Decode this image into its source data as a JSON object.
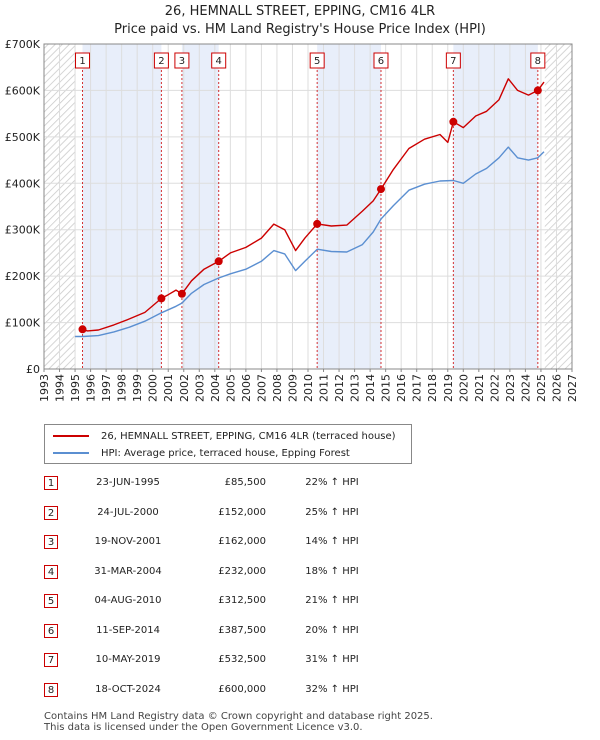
{
  "chart_data": {
    "type": "line",
    "title": "26, HEMNALL STREET, EPPING, CM16 4LR",
    "subtitle": "Price paid vs. HM Land Registry's House Price Index (HPI)",
    "xlim": [
      1993,
      2027
    ],
    "ylim": [
      0,
      700000
    ],
    "xticks": [
      "1993",
      "1994",
      "1995",
      "1996",
      "1997",
      "1998",
      "1999",
      "2000",
      "2001",
      "2002",
      "2003",
      "2004",
      "2005",
      "2006",
      "2007",
      "2008",
      "2009",
      "2010",
      "2011",
      "2012",
      "2013",
      "2014",
      "2015",
      "2016",
      "2017",
      "2018",
      "2019",
      "2020",
      "2021",
      "2022",
      "2023",
      "2024",
      "2025",
      "2026",
      "2027"
    ],
    "yticks": [
      {
        "value": 0,
        "label": "£0"
      },
      {
        "value": 100000,
        "label": "£100K"
      },
      {
        "value": 200000,
        "label": "£200K"
      },
      {
        "value": 300000,
        "label": "£300K"
      },
      {
        "value": 400000,
        "label": "£400K"
      },
      {
        "value": 500000,
        "label": "£500K"
      },
      {
        "value": 600000,
        "label": "£600K"
      },
      {
        "value": 700000,
        "label": "£700K"
      }
    ],
    "data_start": 1995.0,
    "data_end": 2025.25,
    "shaded_periods": [
      [
        1995.48,
        2000.56
      ],
      [
        2001.88,
        2004.25
      ],
      [
        2010.59,
        2014.7
      ],
      [
        2019.36,
        2024.8
      ]
    ],
    "series": [
      {
        "name": "26, HEMNALL STREET, EPPING, CM16 4LR (terraced house)",
        "color": "#cc0000",
        "points": [
          [
            1995.48,
            85500
          ],
          [
            1995.8,
            82000
          ],
          [
            1996.5,
            84000
          ],
          [
            1997.5,
            95000
          ],
          [
            1998.5,
            108000
          ],
          [
            1999.5,
            122000
          ],
          [
            2000.56,
            152000
          ],
          [
            2001.0,
            160000
          ],
          [
            2001.5,
            170000
          ],
          [
            2001.88,
            162000
          ],
          [
            2002.5,
            190000
          ],
          [
            2003.3,
            215000
          ],
          [
            2004.25,
            232000
          ],
          [
            2005.0,
            250000
          ],
          [
            2006.0,
            262000
          ],
          [
            2007.0,
            282000
          ],
          [
            2007.8,
            312000
          ],
          [
            2008.5,
            300000
          ],
          [
            2009.2,
            255000
          ],
          [
            2009.8,
            282000
          ],
          [
            2010.59,
            312500
          ],
          [
            2011.5,
            308000
          ],
          [
            2012.5,
            310000
          ],
          [
            2013.5,
            340000
          ],
          [
            2014.2,
            362000
          ],
          [
            2014.7,
            387500
          ],
          [
            2015.5,
            430000
          ],
          [
            2016.5,
            475000
          ],
          [
            2017.5,
            495000
          ],
          [
            2018.5,
            505000
          ],
          [
            2019.0,
            488000
          ],
          [
            2019.36,
            532500
          ],
          [
            2020.0,
            520000
          ],
          [
            2020.8,
            545000
          ],
          [
            2021.5,
            555000
          ],
          [
            2022.3,
            580000
          ],
          [
            2022.9,
            625000
          ],
          [
            2023.5,
            600000
          ],
          [
            2024.2,
            590000
          ],
          [
            2024.8,
            600000
          ],
          [
            2025.2,
            618000
          ]
        ]
      },
      {
        "name": "HPI: Average price, terraced house, Epping Forest",
        "color": "#5b8fd1",
        "points": [
          [
            1995.0,
            70000
          ],
          [
            1995.5,
            70000
          ],
          [
            1996.5,
            72000
          ],
          [
            1997.5,
            80000
          ],
          [
            1998.5,
            90000
          ],
          [
            1999.5,
            103000
          ],
          [
            2000.56,
            121000
          ],
          [
            2001.5,
            135000
          ],
          [
            2001.88,
            142000
          ],
          [
            2002.5,
            163000
          ],
          [
            2003.3,
            182000
          ],
          [
            2004.25,
            196000
          ],
          [
            2005.0,
            205000
          ],
          [
            2006.0,
            215000
          ],
          [
            2007.0,
            232000
          ],
          [
            2007.8,
            255000
          ],
          [
            2008.5,
            248000
          ],
          [
            2009.2,
            212000
          ],
          [
            2009.8,
            232000
          ],
          [
            2010.59,
            258000
          ],
          [
            2011.5,
            253000
          ],
          [
            2012.5,
            252000
          ],
          [
            2013.5,
            268000
          ],
          [
            2014.2,
            295000
          ],
          [
            2014.7,
            323000
          ],
          [
            2015.5,
            352000
          ],
          [
            2016.5,
            385000
          ],
          [
            2017.5,
            398000
          ],
          [
            2018.5,
            405000
          ],
          [
            2019.36,
            406000
          ],
          [
            2020.0,
            400000
          ],
          [
            2020.8,
            420000
          ],
          [
            2021.5,
            432000
          ],
          [
            2022.3,
            455000
          ],
          [
            2022.9,
            478000
          ],
          [
            2023.5,
            455000
          ],
          [
            2024.2,
            450000
          ],
          [
            2024.8,
            455000
          ],
          [
            2025.2,
            468000
          ]
        ]
      }
    ],
    "sales": [
      {
        "n": "1",
        "x": 1995.48,
        "y": 85500
      },
      {
        "n": "2",
        "x": 2000.56,
        "y": 152000
      },
      {
        "n": "3",
        "x": 2001.88,
        "y": 162000
      },
      {
        "n": "4",
        "x": 2004.25,
        "y": 232000
      },
      {
        "n": "5",
        "x": 2010.59,
        "y": 312500
      },
      {
        "n": "6",
        "x": 2014.7,
        "y": 387500
      },
      {
        "n": "7",
        "x": 2019.36,
        "y": 532500
      },
      {
        "n": "8",
        "x": 2024.8,
        "y": 600000
      }
    ]
  },
  "legend": {
    "property_label": "26, HEMNALL STREET, EPPING, CM16 4LR (terraced house)",
    "hpi_label": "HPI: Average price, terraced house, Epping Forest"
  },
  "sales_table": [
    {
      "n": "1",
      "date": "23-JUN-1995",
      "price": "£85,500",
      "hpi": "22% ↑ HPI"
    },
    {
      "n": "2",
      "date": "24-JUL-2000",
      "price": "£152,000",
      "hpi": "25% ↑ HPI"
    },
    {
      "n": "3",
      "date": "19-NOV-2001",
      "price": "£162,000",
      "hpi": "14% ↑ HPI"
    },
    {
      "n": "4",
      "date": "31-MAR-2004",
      "price": "£232,000",
      "hpi": "18% ↑ HPI"
    },
    {
      "n": "5",
      "date": "04-AUG-2010",
      "price": "£312,500",
      "hpi": "21% ↑ HPI"
    },
    {
      "n": "6",
      "date": "11-SEP-2014",
      "price": "£387,500",
      "hpi": "20% ↑ HPI"
    },
    {
      "n": "7",
      "date": "10-MAY-2019",
      "price": "£532,500",
      "hpi": "31% ↑ HPI"
    },
    {
      "n": "8",
      "date": "18-OCT-2024",
      "price": "£600,000",
      "hpi": "32% ↑ HPI"
    }
  ],
  "footer": {
    "line1": "Contains HM Land Registry data © Crown copyright and database right 2025.",
    "line2": "This data is licensed under the Open Government Licence v3.0."
  },
  "colors": {
    "property": "#cc0000",
    "hpi": "#5b8fd1",
    "shade": "#e8eefa",
    "grid": "#dddddd",
    "background": "#ffffff"
  }
}
